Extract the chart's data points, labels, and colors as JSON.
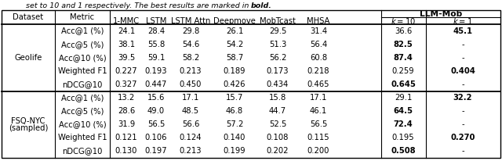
{
  "caption": "set to 10 and 1 respectively. The best results are marked in bold.",
  "llm_mob_header": "LLM-Mob",
  "llm_k10_label": "k = 10",
  "llm_k1_label": "k = 1",
  "metrics": [
    "Acc@1 (%)",
    "Acc@5 (%)",
    "Acc@10 (%)",
    "Weighted F1",
    "nDCG@10"
  ],
  "geolife_data": [
    [
      "24.1",
      "28.4",
      "29.8",
      "26.1",
      "29.5",
      "31.4",
      "36.6",
      "45.1"
    ],
    [
      "38.1",
      "55.8",
      "54.6",
      "54.2",
      "51.3",
      "56.4",
      "82.5",
      "-"
    ],
    [
      "39.5",
      "59.1",
      "58.2",
      "58.7",
      "56.2",
      "60.8",
      "87.4",
      "-"
    ],
    [
      "0.227",
      "0.193",
      "0.213",
      "0.189",
      "0.173",
      "0.218",
      "0.259",
      "0.404"
    ],
    [
      "0.327",
      "0.447",
      "0.450",
      "0.426",
      "0.434",
      "0.465",
      "0.645",
      "-"
    ]
  ],
  "geolife_bold": [
    [
      false,
      false,
      false,
      false,
      false,
      false,
      false,
      true
    ],
    [
      false,
      false,
      false,
      false,
      false,
      false,
      true,
      false
    ],
    [
      false,
      false,
      false,
      false,
      false,
      false,
      true,
      false
    ],
    [
      false,
      false,
      false,
      false,
      false,
      false,
      false,
      true
    ],
    [
      false,
      false,
      false,
      false,
      false,
      false,
      true,
      false
    ]
  ],
  "fsq_data": [
    [
      "13.2",
      "15.6",
      "17.1",
      "15.7",
      "15.8",
      "17.1",
      "29.1",
      "32.2"
    ],
    [
      "28.6",
      "49.0",
      "48.5",
      "46.8",
      "44.7",
      "46.1",
      "64.5",
      "-"
    ],
    [
      "31.9",
      "56.5",
      "56.6",
      "57.2",
      "52.5",
      "56.5",
      "72.4",
      "-"
    ],
    [
      "0.121",
      "0.106",
      "0.124",
      "0.140",
      "0.108",
      "0.115",
      "0.195",
      "0.270"
    ],
    [
      "0.130",
      "0.197",
      "0.213",
      "0.199",
      "0.202",
      "0.200",
      "0.508",
      "-"
    ]
  ],
  "fsq_bold": [
    [
      false,
      false,
      false,
      false,
      false,
      false,
      false,
      true
    ],
    [
      false,
      false,
      false,
      false,
      false,
      false,
      true,
      false
    ],
    [
      false,
      false,
      false,
      false,
      false,
      false,
      true,
      false
    ],
    [
      false,
      false,
      false,
      false,
      false,
      false,
      false,
      true
    ],
    [
      false,
      false,
      false,
      false,
      false,
      false,
      true,
      false
    ]
  ],
  "background_color": "#ffffff",
  "font_size": 7.2
}
